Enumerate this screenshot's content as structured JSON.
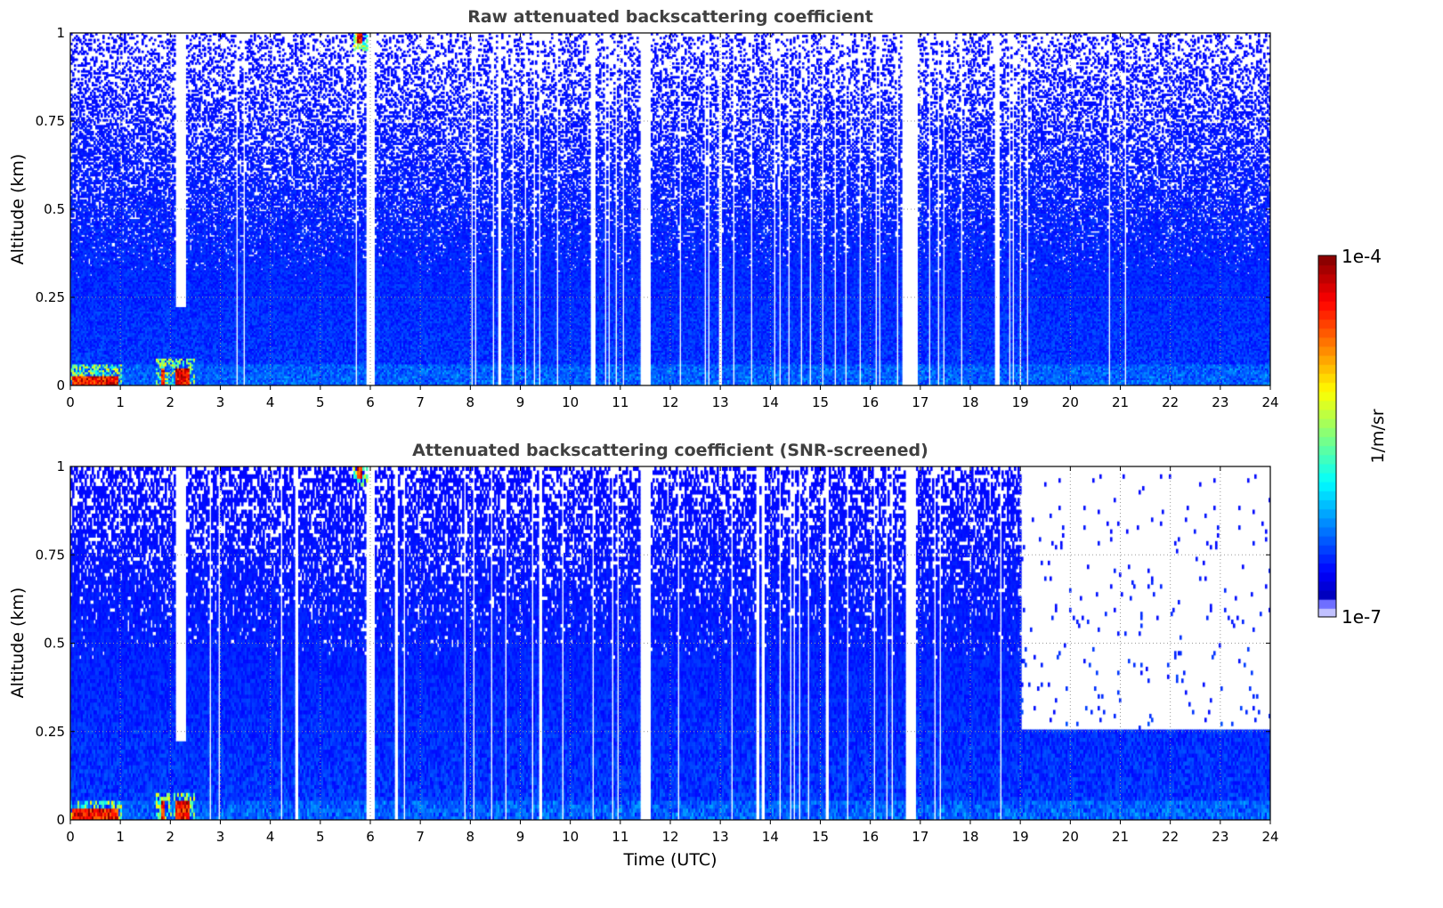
{
  "chart_data": [
    {
      "type": "heatmap",
      "title": "Raw attenuated backscattering coefficient",
      "xlabel": "",
      "ylabel": "Altitude (km)",
      "xlim": [
        0,
        24
      ],
      "ylim": [
        0,
        1
      ],
      "xticks": [
        "0",
        "1",
        "2",
        "3",
        "4",
        "5",
        "6",
        "7",
        "8",
        "9",
        "10",
        "11",
        "12",
        "13",
        "14",
        "15",
        "16",
        "17",
        "18",
        "19",
        "20",
        "21",
        "22",
        "23",
        "24"
      ],
      "yticks": [
        "0",
        "0.25",
        "0.5",
        "0.75",
        "1"
      ],
      "grid": true,
      "screened": false,
      "high_signal_regions": [
        {
          "x": [
            0.05,
            0.95
          ],
          "y": [
            0,
            0.03
          ]
        },
        {
          "x": [
            1.8,
            1.9
          ],
          "y": [
            0,
            0.05
          ]
        },
        {
          "x": [
            2.1,
            2.4
          ],
          "y": [
            0,
            0.05
          ]
        },
        {
          "x": [
            5.75,
            5.85
          ],
          "y": [
            0.97,
            1.0
          ]
        }
      ],
      "gap_columns": [
        2.2,
        6.0,
        11.5,
        16.8
      ]
    },
    {
      "type": "heatmap",
      "title": "Attenuated backscattering coefficient (SNR-screened)",
      "xlabel": "Time (UTC)",
      "ylabel": "Altitude (km)",
      "xlim": [
        0,
        24
      ],
      "ylim": [
        0,
        1
      ],
      "xticks": [
        "0",
        "1",
        "2",
        "3",
        "4",
        "5",
        "6",
        "7",
        "8",
        "9",
        "10",
        "11",
        "12",
        "13",
        "14",
        "15",
        "16",
        "17",
        "18",
        "19",
        "20",
        "21",
        "22",
        "23",
        "24"
      ],
      "yticks": [
        "0",
        "0.25",
        "0.5",
        "0.75",
        "1"
      ],
      "grid": true,
      "screened": true,
      "screen_top_after_19h_km": 0.26,
      "high_signal_regions": [
        {
          "x": [
            0.05,
            0.95
          ],
          "y": [
            0,
            0.03
          ]
        },
        {
          "x": [
            1.8,
            1.9
          ],
          "y": [
            0,
            0.05
          ]
        },
        {
          "x": [
            2.1,
            2.4
          ],
          "y": [
            0,
            0.05
          ]
        },
        {
          "x": [
            5.75,
            5.85
          ],
          "y": [
            0.97,
            1.0
          ]
        }
      ],
      "gap_columns": [
        2.2,
        6.0,
        11.5,
        16.8
      ]
    }
  ],
  "colorbar": {
    "label": "1/m/sr",
    "max_label": "1e-4",
    "min_label": "1e-7",
    "range": [
      1e-07,
      0.0001
    ],
    "scale": "log",
    "colormap": "jet-with-white-low"
  }
}
